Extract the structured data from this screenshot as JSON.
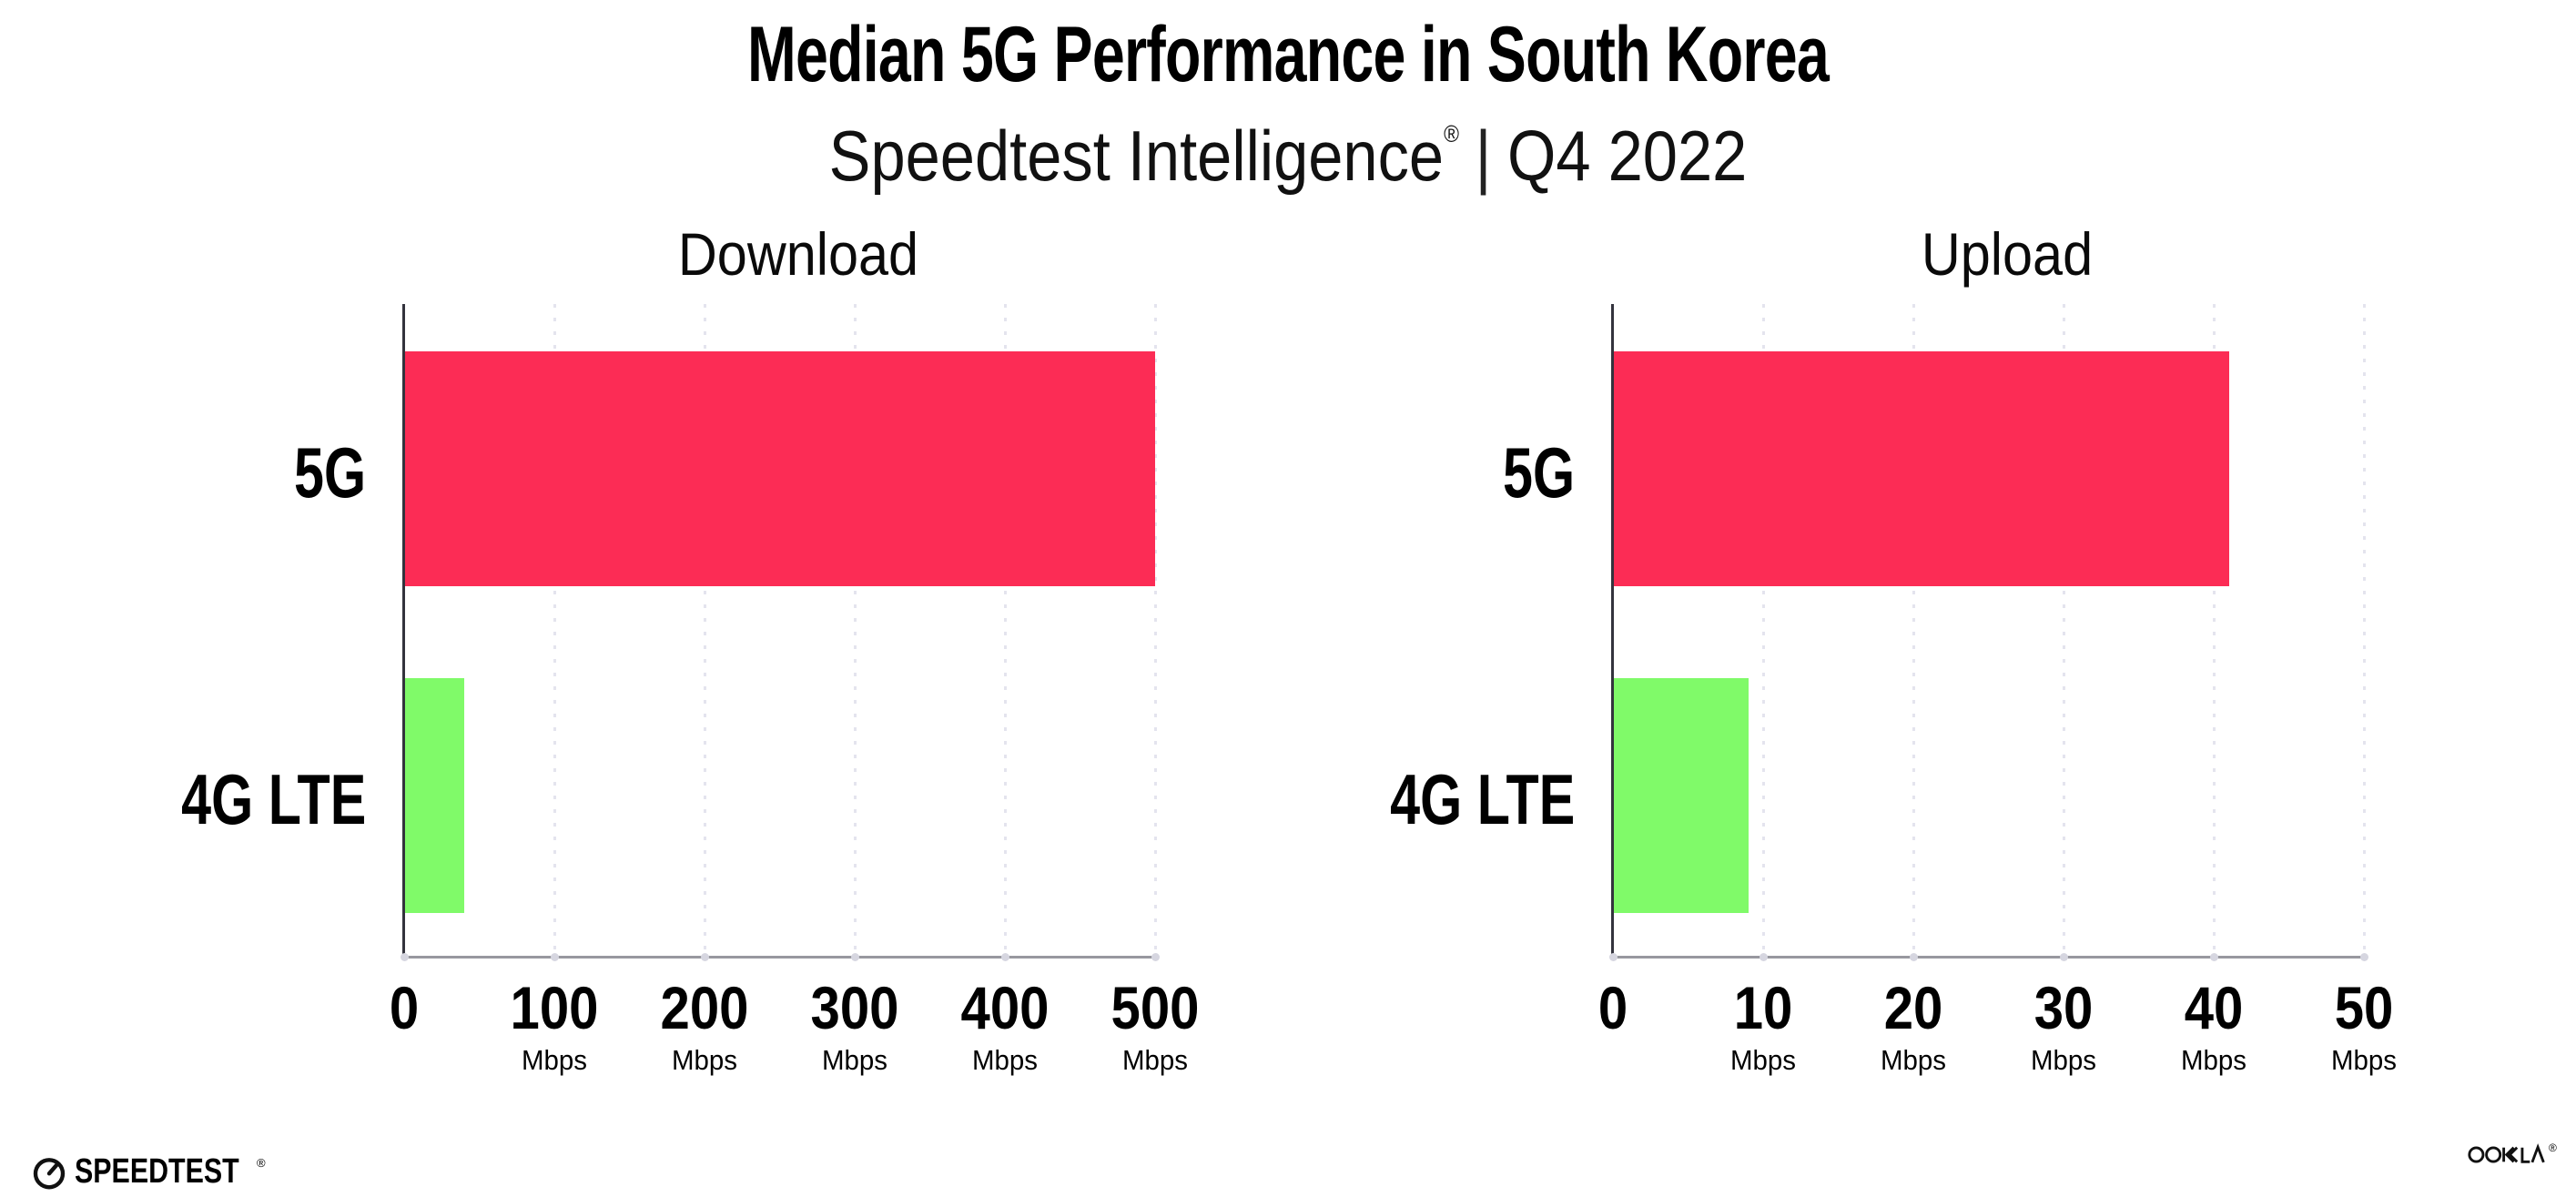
{
  "page": {
    "background": "#ffffff"
  },
  "header": {
    "title": "Median 5G Performance in South Korea",
    "subtitle": {
      "brand": "Speedtest Intelligence",
      "reg_mark": "®",
      "separator": "|",
      "period": "Q4 2022"
    }
  },
  "chart_data": [
    {
      "type": "bar",
      "orientation": "horizontal",
      "title": "Download",
      "categories": [
        "5G",
        "4G LTE"
      ],
      "values": [
        500,
        40
      ],
      "unit": "Mbps",
      "xlim": [
        0,
        500
      ],
      "xticks": [
        0,
        100,
        200,
        300,
        400,
        500
      ],
      "bar_colors": [
        "#FC2C55",
        "#80FA69"
      ],
      "grid": "vertical-dotted",
      "legend": "none"
    },
    {
      "type": "bar",
      "orientation": "horizontal",
      "title": "Upload",
      "categories": [
        "5G",
        "4G LTE"
      ],
      "values": [
        41,
        9
      ],
      "unit": "Mbps",
      "xlim": [
        0,
        50
      ],
      "xticks": [
        0,
        10,
        20,
        30,
        40,
        50
      ],
      "bar_colors": [
        "#FC2C55",
        "#80FA69"
      ],
      "grid": "vertical-dotted",
      "legend": "none"
    }
  ],
  "colors": {
    "bar_5g": "#FC2C55",
    "bar_4g_lte": "#80FA69",
    "gridline": "#E4E4EE",
    "x_axis_line": "#98989F",
    "y_axis_line": "#33333D",
    "tick_dot": "#D6D6E0",
    "text": "#000000",
    "background": "#FFFFFF"
  },
  "footer": {
    "speedtest_wordmark": "SPEEDTEST",
    "speedtest_reg_mark": "®",
    "ookla_wordmark": "OOKLA",
    "ookla_reg_mark": "®"
  }
}
